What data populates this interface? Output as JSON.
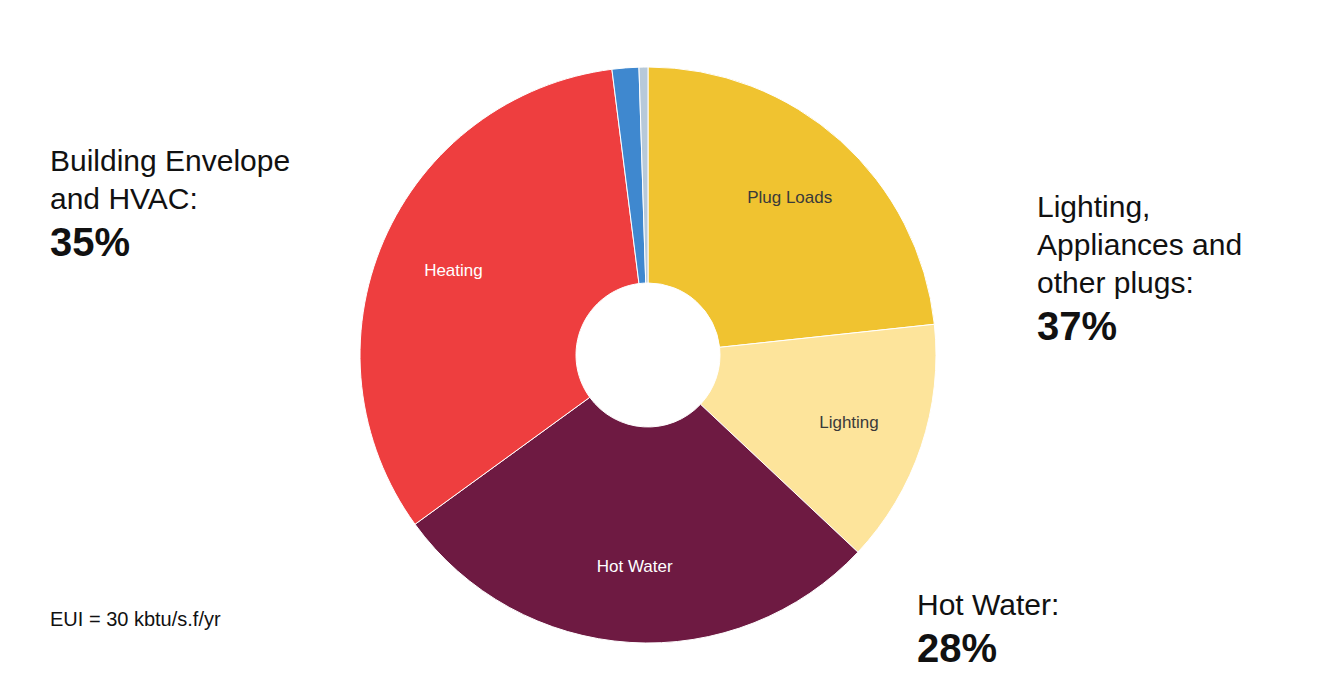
{
  "chart_data": {
    "type": "pie",
    "categories": [
      "Plug Loads",
      "Lighting",
      "Hot Water",
      "Heating",
      null,
      null
    ],
    "values": [
      23.3,
      13.7,
      28,
      33,
      1.5,
      0.5
    ],
    "colors": [
      "#f0c330",
      "#fde49b",
      "#6e1a42",
      "#ee3e3f",
      "#3f88cf",
      "#b7c9d9"
    ],
    "annotations": {
      "groups": [
        {
          "lines": [
            "Building Envelope",
            "and HVAC:"
          ],
          "value": 35,
          "value_label": "35%"
        },
        {
          "lines": [
            "Lighting,",
            "Appliances and",
            "other plugs:"
          ],
          "value": 37,
          "value_label": "37%"
        },
        {
          "lines": [
            "Hot Water:"
          ],
          "value": 28,
          "value_label": "28%"
        }
      ],
      "note": "EUI = 30 kbtu/s.f/yr"
    }
  }
}
